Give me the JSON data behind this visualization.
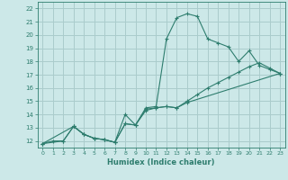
{
  "bg_color": "#cce8e8",
  "grid_color": "#aacccc",
  "line_color": "#2e7d6e",
  "xlabel": "Humidex (Indice chaleur)",
  "ylim": [
    11.5,
    22.5
  ],
  "xlim": [
    -0.5,
    23.5
  ],
  "yticks": [
    12,
    13,
    14,
    15,
    16,
    17,
    18,
    19,
    20,
    21,
    22
  ],
  "xticks": [
    0,
    1,
    2,
    3,
    4,
    5,
    6,
    7,
    8,
    9,
    10,
    11,
    12,
    13,
    14,
    15,
    16,
    17,
    18,
    19,
    20,
    21,
    22,
    23
  ],
  "series1_x": [
    0,
    1,
    2,
    3,
    4,
    5,
    6,
    7,
    8,
    9,
    10,
    11,
    12,
    13,
    14,
    15,
    16,
    17,
    18,
    19,
    20,
    21,
    22,
    23
  ],
  "series1_y": [
    11.8,
    12.0,
    12.0,
    13.1,
    12.5,
    12.2,
    12.1,
    11.9,
    14.0,
    13.2,
    14.5,
    14.6,
    19.7,
    21.3,
    21.6,
    21.4,
    19.7,
    19.4,
    19.1,
    18.0,
    18.8,
    17.7,
    17.4,
    17.1
  ],
  "series2_x": [
    0,
    3,
    4,
    5,
    6,
    7,
    8,
    9,
    10,
    11,
    12,
    13,
    14,
    15,
    16,
    17,
    18,
    19,
    20,
    21,
    22,
    23
  ],
  "series2_y": [
    11.8,
    13.1,
    12.5,
    12.2,
    12.1,
    11.9,
    13.3,
    13.2,
    14.4,
    14.5,
    14.6,
    14.5,
    15.0,
    15.5,
    16.0,
    16.4,
    16.8,
    17.2,
    17.6,
    17.9,
    17.5,
    17.1
  ],
  "series3_x": [
    0,
    2,
    3,
    4,
    5,
    6,
    7,
    8,
    9,
    10,
    11,
    12,
    13,
    14,
    23
  ],
  "series3_y": [
    11.8,
    12.0,
    13.1,
    12.5,
    12.2,
    12.1,
    11.9,
    13.3,
    13.2,
    14.3,
    14.5,
    14.6,
    14.5,
    14.9,
    17.1
  ]
}
